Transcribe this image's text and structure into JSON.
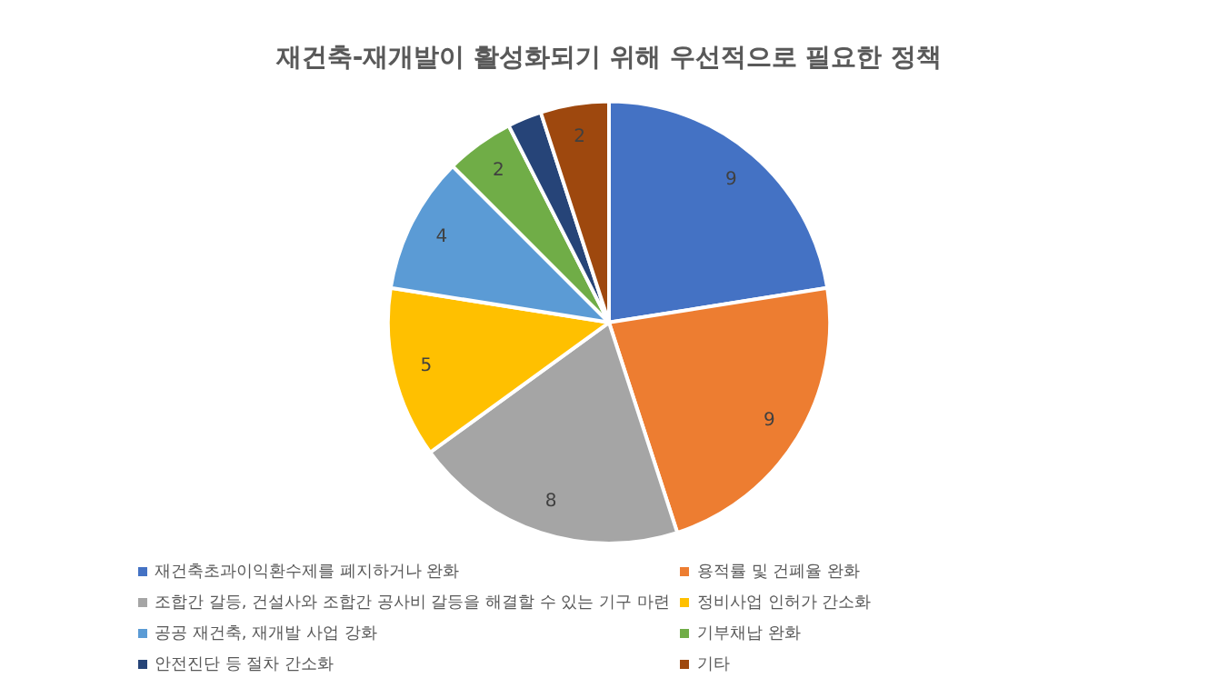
{
  "chart_data": {
    "type": "pie",
    "title": "재건축-재개발이 활성화되기 위해 우선적으로 필요한 정책",
    "categories": [
      "재건축초과이익환수제를 폐지하거나 완화",
      "용적률 및 건폐율 완화",
      "조합간 갈등, 건설사와 조합간 공사비 갈등을 해결할 수 있는 기구 마련",
      "정비사업 인허가 간소화",
      "공공 재건축, 재개발 사업 강화",
      "기부채납 완화",
      "안전진단 등 절차 간소화",
      "기타"
    ],
    "values": [
      9,
      9,
      8,
      5,
      4,
      2,
      1,
      2
    ],
    "value_labels": [
      "9",
      "9",
      "8",
      "5",
      "4",
      "2",
      null,
      "2"
    ],
    "colors": [
      "#4472c4",
      "#ed7d31",
      "#a5a5a5",
      "#ffc000",
      "#5b9bd5",
      "#70ad47",
      "#264478",
      "#9e480e"
    ],
    "legend": "bottom"
  }
}
